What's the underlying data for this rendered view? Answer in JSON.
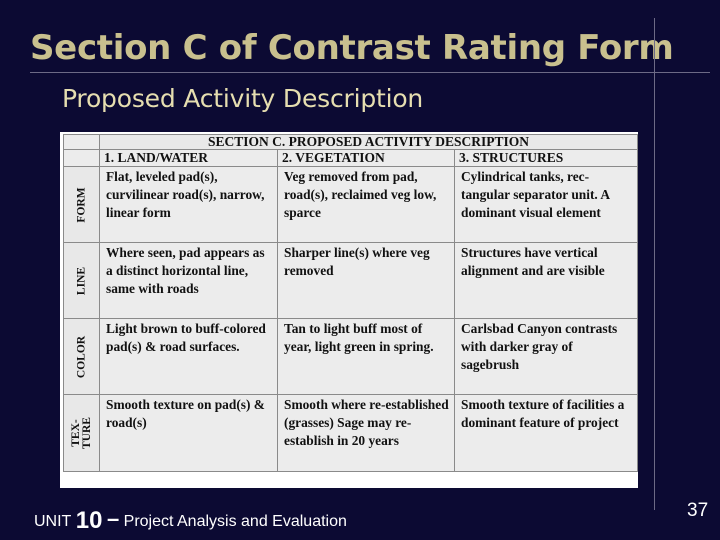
{
  "slide": {
    "title": "Section C of Contrast Rating Form",
    "subtitle": "Proposed Activity Description",
    "footer": {
      "unit": "UNIT",
      "number": "10",
      "dash": "–",
      "text": "Project Analysis and Evaluation"
    },
    "page_number": "37"
  },
  "colors": {
    "background": "#0c0a33",
    "title": "#c9c08e",
    "subtitle": "#e6deb0"
  },
  "form": {
    "header": "SECTION C. PROPOSED ACTIVITY DESCRIPTION",
    "columns": [
      "1. LAND/WATER",
      "2. VEGETATION",
      "3. STRUCTURES"
    ],
    "rows": [
      {
        "label": "FORM",
        "cells": [
          "Flat, leveled pad(s), curvilinear road(s), narrow, linear form",
          "Veg removed from pad, road(s), reclaimed veg low, sparce",
          "Cylindrical tanks, rec-tangular separator unit. A dominant visual element"
        ]
      },
      {
        "label": "LINE",
        "cells": [
          "Where seen, pad appears as a distinct horizontal line, same with roads",
          "Sharper line(s) where veg removed",
          "Structures have vertical alignment and are visible"
        ]
      },
      {
        "label": "COLOR",
        "cells": [
          "Light brown to buff-colored pad(s) & road surfaces.",
          "Tan to light buff most of year, light green in spring.",
          "Carlsbad Canyon contrasts with darker gray of sagebrush"
        ]
      },
      {
        "label": "TEX-\nTURE",
        "cells": [
          "Smooth texture on pad(s) & road(s)",
          "Smooth where re-established (grasses) Sage may re-establish in 20 years",
          "Smooth texture of facilities a dominant feature of project"
        ]
      }
    ]
  }
}
